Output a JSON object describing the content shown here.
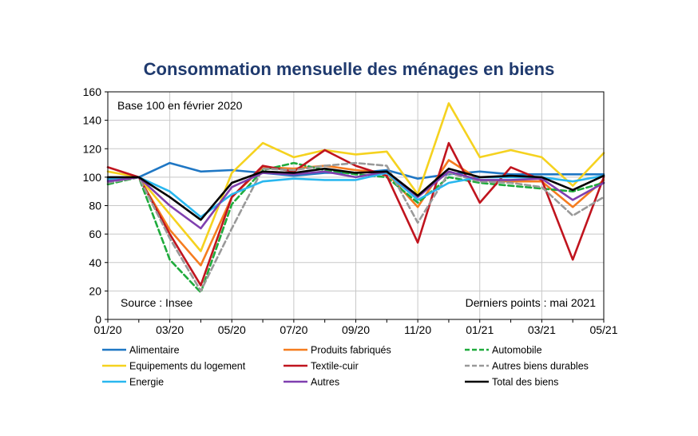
{
  "chart_data": {
    "type": "line",
    "title": "Consommation mensuelle des ménages en biens",
    "xlabel": "",
    "ylabel": "",
    "ylim": [
      0,
      160
    ],
    "yticks": [
      0,
      20,
      40,
      60,
      80,
      100,
      120,
      140,
      160
    ],
    "x": [
      "01/20",
      "02/20",
      "03/20",
      "04/20",
      "05/20",
      "06/20",
      "07/20",
      "08/20",
      "09/20",
      "10/20",
      "11/20",
      "12/20",
      "01/21",
      "02/21",
      "03/21",
      "04/21",
      "05/21"
    ],
    "xtick_labels": [
      "01/20",
      "03/20",
      "05/20",
      "07/20",
      "09/20",
      "11/20",
      "01/21",
      "03/21",
      "05/21"
    ],
    "grid": true,
    "legend_position": "bottom",
    "notes": {
      "base": "Base 100 en février 2020",
      "source": "Source : Insee",
      "last_points": "Derniers points : mai 2021"
    },
    "series": [
      {
        "name": "Alimentaire",
        "color": "#1f77c4",
        "dash": "solid",
        "values": [
          98,
          100,
          110,
          104,
          105,
          103,
          101,
          103,
          103,
          105,
          99,
          102,
          104,
          102,
          102,
          102,
          102
        ]
      },
      {
        "name": "Produits fabriqués",
        "color": "#f57c1f",
        "dash": "solid",
        "values": [
          99,
          100,
          63,
          38,
          86,
          107,
          106,
          108,
          105,
          103,
          79,
          112,
          98,
          97,
          97,
          79,
          98
        ]
      },
      {
        "name": "Automobile",
        "color": "#1fab3c",
        "dash": "dashed",
        "values": [
          95,
          100,
          42,
          19,
          81,
          105,
          110,
          105,
          102,
          100,
          82,
          100,
          96,
          94,
          92,
          90,
          96
        ]
      },
      {
        "name": "Equipements du logement",
        "color": "#f5d21f",
        "dash": "solid",
        "values": [
          104,
          100,
          74,
          48,
          103,
          124,
          114,
          119,
          116,
          118,
          88,
          152,
          114,
          119,
          114,
          94,
          117
        ]
      },
      {
        "name": "Textile-cuir",
        "color": "#c0141e",
        "dash": "solid",
        "values": [
          107,
          100,
          60,
          24,
          86,
          108,
          104,
          119,
          108,
          101,
          54,
          124,
          82,
          107,
          98,
          42,
          100
        ]
      },
      {
        "name": "Autres biens durables",
        "color": "#999999",
        "dash": "dashed",
        "values": [
          96,
          100,
          57,
          20,
          64,
          106,
          105,
          108,
          110,
          108,
          68,
          103,
          97,
          96,
          93,
          73,
          86
        ]
      },
      {
        "name": "Energie",
        "color": "#29b7ef",
        "dash": "solid",
        "values": [
          99,
          100,
          90,
          72,
          88,
          97,
          99,
          98,
          98,
          103,
          84,
          96,
          100,
          100,
          100,
          97,
          101
        ]
      },
      {
        "name": "Autres",
        "color": "#7f3faf",
        "dash": "solid",
        "values": [
          97,
          100,
          80,
          64,
          93,
          103,
          102,
          104,
          100,
          104,
          86,
          104,
          98,
          98,
          99,
          84,
          96
        ]
      },
      {
        "name": "Total des biens",
        "color": "#000000",
        "dash": "solid",
        "values": [
          100,
          100,
          86,
          70,
          96,
          104,
          103,
          106,
          103,
          104,
          87,
          106,
          100,
          101,
          100,
          91,
          101
        ]
      }
    ]
  }
}
